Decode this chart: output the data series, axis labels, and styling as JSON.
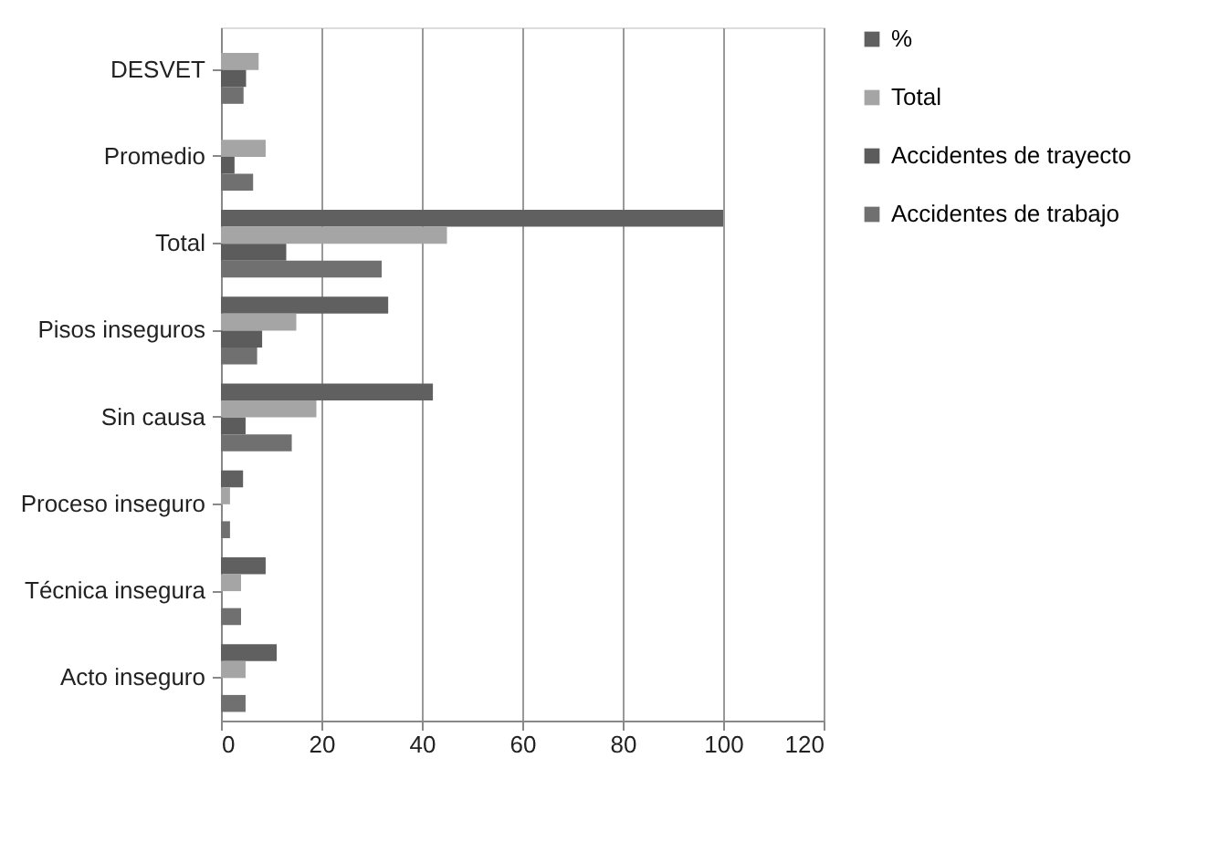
{
  "chart_data": {
    "type": "bar",
    "orientation": "horizontal",
    "categories": [
      "DESVET",
      "Promedio",
      "Total",
      "Pisos inseguros",
      "Sin causa",
      "Proceso inseguro",
      "Técnica insegura",
      "Acto inseguro"
    ],
    "series": [
      {
        "name": "%",
        "color": "#606060",
        "values": [
          null,
          null,
          100,
          33.3,
          42.2,
          4.4,
          8.9,
          11.1
        ]
      },
      {
        "name": "Total",
        "color": "#a5a5a5",
        "values": [
          7.5,
          8.9,
          45,
          15,
          19,
          1.8,
          4,
          4.9
        ]
      },
      {
        "name": "Accidentes de trayecto",
        "color": "#5c5c5c",
        "values": [
          5,
          2.7,
          13,
          8.2,
          4.9,
          null,
          null,
          null
        ]
      },
      {
        "name": "Accidentes de trabajo",
        "color": "#707070",
        "values": [
          4.5,
          6.4,
          32,
          7.2,
          14.1,
          1.8,
          4,
          4.9
        ]
      }
    ],
    "xlim": [
      0,
      120
    ],
    "xticks": [
      0,
      20,
      40,
      60,
      80,
      100,
      120
    ],
    "grid": "x",
    "legend": "right"
  }
}
